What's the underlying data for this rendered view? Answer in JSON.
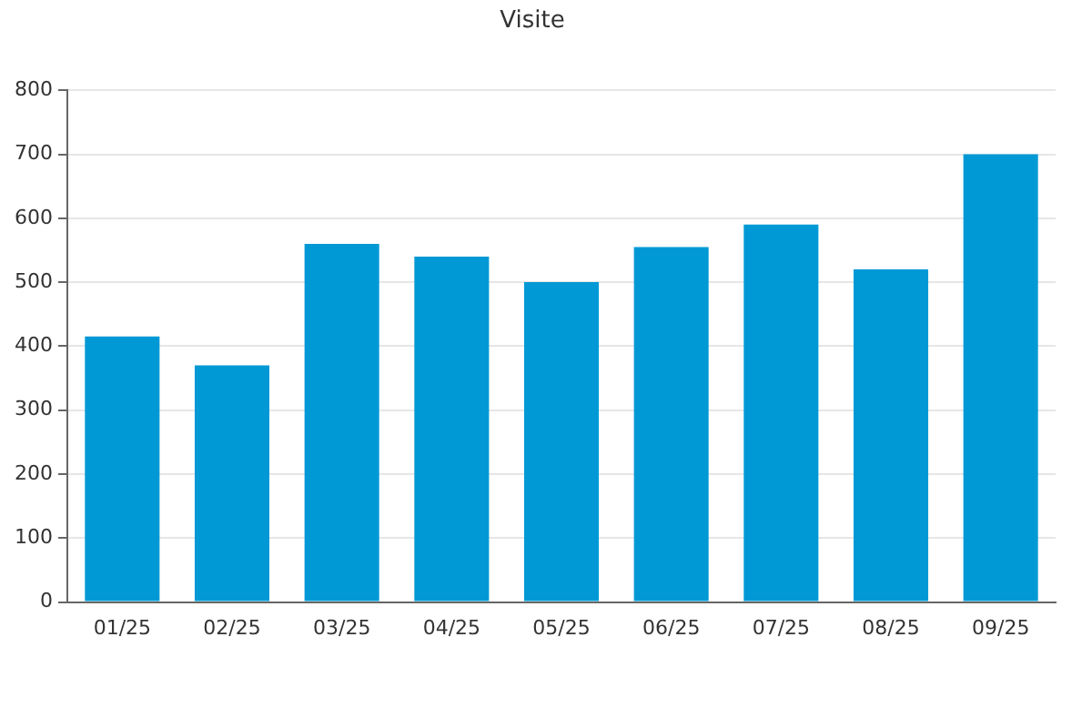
{
  "chart_data": {
    "type": "bar",
    "title": "Visite",
    "categories": [
      "01/25",
      "02/25",
      "03/25",
      "04/25",
      "05/25",
      "06/25",
      "07/25",
      "08/25",
      "09/25"
    ],
    "values": [
      415,
      370,
      560,
      540,
      500,
      555,
      590,
      520,
      700
    ],
    "color": "#0099d6",
    "ylim": [
      0,
      800
    ],
    "yticks": [
      0,
      100,
      200,
      300,
      400,
      500,
      600,
      700,
      800
    ],
    "grid": "y"
  }
}
